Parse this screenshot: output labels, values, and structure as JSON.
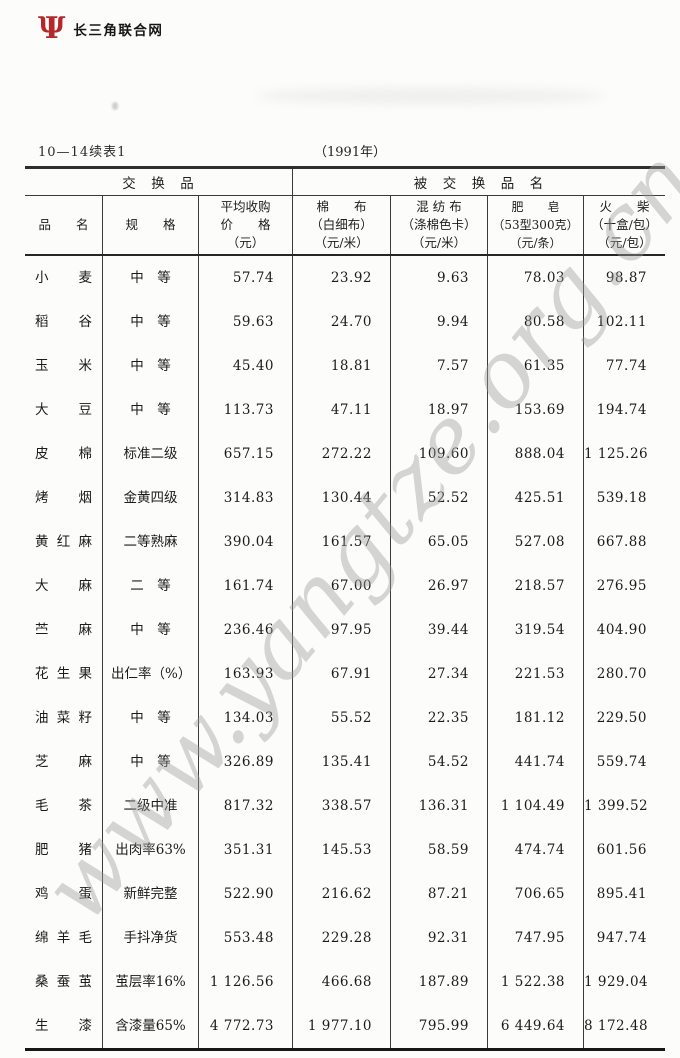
{
  "page": {
    "site_logo": {
      "mark": "Ψ",
      "text": "长三角联合网",
      "color": "#b5282a"
    },
    "watermark": {
      "text": "www.yangtze.org.cn",
      "color": "#bdbdbd"
    },
    "table_label": "10—14续表1",
    "year_label": "（1991年）"
  },
  "table": {
    "group_headers": {
      "left": "交　换　品",
      "right": "被　交　换　品　名"
    },
    "columns": [
      {
        "id": "product-name",
        "lines": [
          "品　　名"
        ]
      },
      {
        "id": "specification",
        "lines": [
          "规　　格"
        ]
      },
      {
        "id": "avg-purchase-price",
        "lines": [
          "平均收购",
          "价　　格",
          "（元）"
        ]
      },
      {
        "id": "cotton-cloth",
        "lines": [
          "棉　　布",
          "（白细布）",
          "（元/米）"
        ]
      },
      {
        "id": "blended-fabric",
        "lines": [
          "混 纺 布",
          "（涤棉色卡）",
          "（元/米）"
        ]
      },
      {
        "id": "soap",
        "lines": [
          "肥　　皂",
          "（53型300克）",
          "（元/条）"
        ]
      },
      {
        "id": "matches",
        "lines": [
          "火　　柴",
          "（十盒/包）",
          "（元/包）"
        ]
      }
    ],
    "rows": [
      [
        "小　麦",
        "中　等",
        "57.74",
        "23.92",
        "9.63",
        "78.03",
        "98.87"
      ],
      [
        "稻　谷",
        "中　等",
        "59.63",
        "24.70",
        "9.94",
        "80.58",
        "102.11"
      ],
      [
        "玉　米",
        "中　等",
        "45.40",
        "18.81",
        "7.57",
        "61.35",
        "77.74"
      ],
      [
        "大　豆",
        "中　等",
        "113.73",
        "47.11",
        "18.97",
        "153.69",
        "194.74"
      ],
      [
        "皮　棉",
        "标准二级",
        "657.15",
        "272.22",
        "109.60",
        "888.04",
        "1 125.26"
      ],
      [
        "烤　烟",
        "金黄四级",
        "314.83",
        "130.44",
        "52.52",
        "425.51",
        "539.18"
      ],
      [
        "黄 红 麻",
        "二等熟麻",
        "390.04",
        "161.57",
        "65.05",
        "527.08",
        "667.88"
      ],
      [
        "大　麻",
        "二　等",
        "161.74",
        "67.00",
        "26.97",
        "218.57",
        "276.95"
      ],
      [
        "苎　麻",
        "中　等",
        "236.46",
        "97.95",
        "39.44",
        "319.54",
        "404.90"
      ],
      [
        "花 生 果",
        "出仁率（%）",
        "163.93",
        "67.91",
        "27.34",
        "221.53",
        "280.70"
      ],
      [
        "油 菜 籽",
        "中　等",
        "134.03",
        "55.52",
        "22.35",
        "181.12",
        "229.50"
      ],
      [
        "芝　麻",
        "中　等",
        "326.89",
        "135.41",
        "54.52",
        "441.74",
        "559.74"
      ],
      [
        "毛　茶",
        "二级中准",
        "817.32",
        "338.57",
        "136.31",
        "1 104.49",
        "1 399.52"
      ],
      [
        "肥　猪",
        "出肉率63%",
        "351.31",
        "145.53",
        "58.59",
        "474.74",
        "601.56"
      ],
      [
        "鸡　蛋",
        "新鲜完整",
        "522.90",
        "216.62",
        "87.21",
        "706.65",
        "895.41"
      ],
      [
        "绵 羊 毛",
        "手抖净货",
        "553.48",
        "229.28",
        "92.31",
        "747.95",
        "947.74"
      ],
      [
        "桑 蚕 茧",
        "茧层率16%",
        "1 126.56",
        "466.68",
        "187.89",
        "1 522.38",
        "1 929.04"
      ],
      [
        "生　漆",
        "含漆量65%",
        "4 772.73",
        "1 977.10",
        "795.99",
        "6 449.64",
        "8 172.48"
      ]
    ]
  }
}
